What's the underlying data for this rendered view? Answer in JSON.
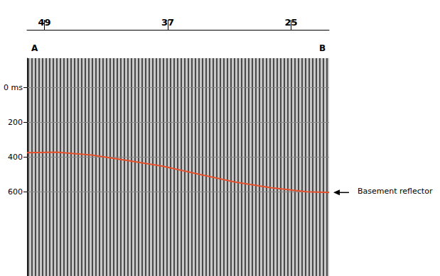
{
  "chart_data": {
    "type": "line",
    "profile_ends": [
      "A",
      "B"
    ],
    "annotation": "Basement reflector",
    "x": [
      50.7,
      47.8,
      44.4,
      40.9,
      37.4,
      34.0,
      30.5,
      27.0,
      23.5,
      21.3
    ],
    "values": [
      375,
      372,
      388,
      420,
      453,
      498,
      543,
      576,
      600,
      604
    ],
    "color": "#e8502c",
    "xlim": [
      50.7,
      21.3
    ],
    "xticks": [
      49,
      37,
      25
    ],
    "ylim": [
      -170,
      1085
    ],
    "yticks": [
      {
        "value": 0,
        "label": "0 ms"
      },
      200,
      400,
      600
    ],
    "grid": true
  }
}
